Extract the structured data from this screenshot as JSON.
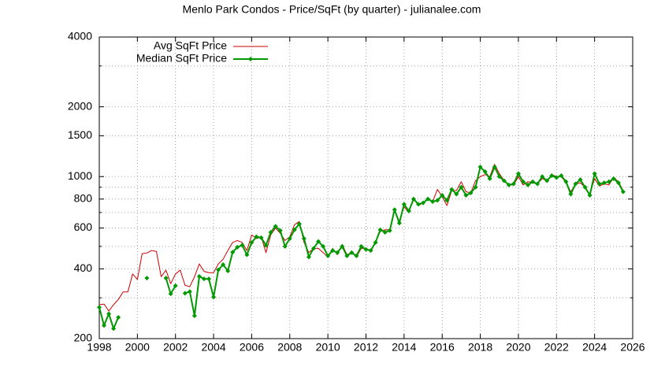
{
  "chart_data": {
    "type": "line",
    "title": "Menlo Park Condos - Price/SqFt (by quarter) - julianalee.com",
    "x": [
      1998,
      1998.25,
      1998.5,
      1998.75,
      1999,
      1999.25,
      1999.5,
      1999.75,
      2000,
      2000.25,
      2000.5,
      2000.75,
      2001,
      2001.25,
      2001.5,
      2001.75,
      2002,
      2002.25,
      2002.5,
      2002.75,
      2003,
      2003.25,
      2003.5,
      2003.75,
      2004,
      2004.25,
      2004.5,
      2004.75,
      2005,
      2005.25,
      2005.5,
      2005.75,
      2006,
      2006.25,
      2006.5,
      2006.75,
      2007,
      2007.25,
      2007.5,
      2007.75,
      2008,
      2008.25,
      2008.5,
      2008.75,
      2009,
      2009.25,
      2009.5,
      2009.75,
      2010,
      2010.25,
      2010.5,
      2010.75,
      2011,
      2011.25,
      2011.5,
      2011.75,
      2012,
      2012.25,
      2012.5,
      2012.75,
      2013,
      2013.25,
      2013.5,
      2013.75,
      2014,
      2014.25,
      2014.5,
      2014.75,
      2015,
      2015.25,
      2015.5,
      2015.75,
      2016,
      2016.25,
      2016.5,
      2016.75,
      2017,
      2017.25,
      2017.5,
      2017.75,
      2018,
      2018.25,
      2018.5,
      2018.75,
      2019,
      2019.25,
      2019.5,
      2019.75,
      2020,
      2020.25,
      2020.5,
      2020.75,
      2021,
      2021.25,
      2021.5,
      2021.75,
      2022,
      2022.25,
      2022.5,
      2022.75,
      2023,
      2023.25,
      2023.5,
      2023.75,
      2024,
      2024.25,
      2024.5,
      2024.75,
      2025,
      2025.25,
      2025.5
    ],
    "series": [
      {
        "name": "Avg SqFt Price",
        "color": "#cc0000",
        "width": 1,
        "markers": false,
        "values": [
          280,
          282,
          263,
          280,
          295,
          318,
          318,
          380,
          360,
          465,
          468,
          480,
          475,
          370,
          395,
          345,
          380,
          395,
          340,
          335,
          370,
          420,
          390,
          385,
          385,
          420,
          440,
          480,
          520,
          530,
          520,
          480,
          560,
          540,
          550,
          470,
          560,
          600,
          570,
          530,
          550,
          620,
          640,
          520,
          470,
          490,
          490,
          470,
          450,
          490,
          460,
          510,
          460,
          470,
          450,
          490,
          490,
          480,
          520,
          580,
          590,
          590,
          720,
          640,
          740,
          700,
          810,
          750,
          770,
          800,
          780,
          880,
          820,
          750,
          870,
          870,
          950,
          860,
          850,
          960,
          1000,
          1020,
          1000,
          1130,
          1030,
          960,
          920,
          920,
          1000,
          920,
          950,
          940,
          930,
          980,
          960,
          1020,
          1000,
          1000,
          940,
          860,
          930,
          940,
          900,
          840,
          980,
          910,
          930,
          920,
          990,
          950,
          870
        ]
      },
      {
        "name": "Median SqFt Price",
        "color": "#009900",
        "width": 2,
        "markers": true,
        "values": [
          273,
          228,
          256,
          221,
          247,
          null,
          null,
          null,
          null,
          null,
          365,
          null,
          null,
          null,
          365,
          312,
          338,
          null,
          314,
          319,
          251,
          371,
          362,
          362,
          302,
          396,
          417,
          392,
          472,
          496,
          506,
          460,
          520,
          550,
          545,
          505,
          575,
          610,
          585,
          500,
          540,
          590,
          625,
          540,
          450,
          490,
          525,
          500,
          455,
          480,
          470,
          500,
          455,
          470,
          455,
          500,
          485,
          480,
          520,
          590,
          575,
          585,
          720,
          630,
          760,
          710,
          800,
          760,
          770,
          800,
          780,
          790,
          830,
          790,
          880,
          840,
          900,
          830,
          850,
          900,
          1100,
          1050,
          980,
          1100,
          1000,
          960,
          920,
          930,
          1030,
          950,
          920,
          950,
          930,
          1000,
          960,
          1010,
          990,
          1010,
          950,
          840,
          930,
          970,
          900,
          830,
          1030,
          930,
          940,
          950,
          980,
          940,
          860
        ]
      }
    ],
    "xlim": [
      1998,
      2026
    ],
    "xticks": [
      1998,
      2000,
      2002,
      2004,
      2006,
      2008,
      2010,
      2012,
      2014,
      2016,
      2018,
      2020,
      2022,
      2024,
      2026
    ],
    "ylim": [
      200,
      4000
    ],
    "yticks": [
      200,
      400,
      600,
      800,
      1000,
      1500,
      2000,
      4000
    ],
    "yticks_minor": [
      300,
      500,
      700,
      900,
      3000
    ],
    "log_y": true,
    "grid": true,
    "legend": "top-left"
  }
}
